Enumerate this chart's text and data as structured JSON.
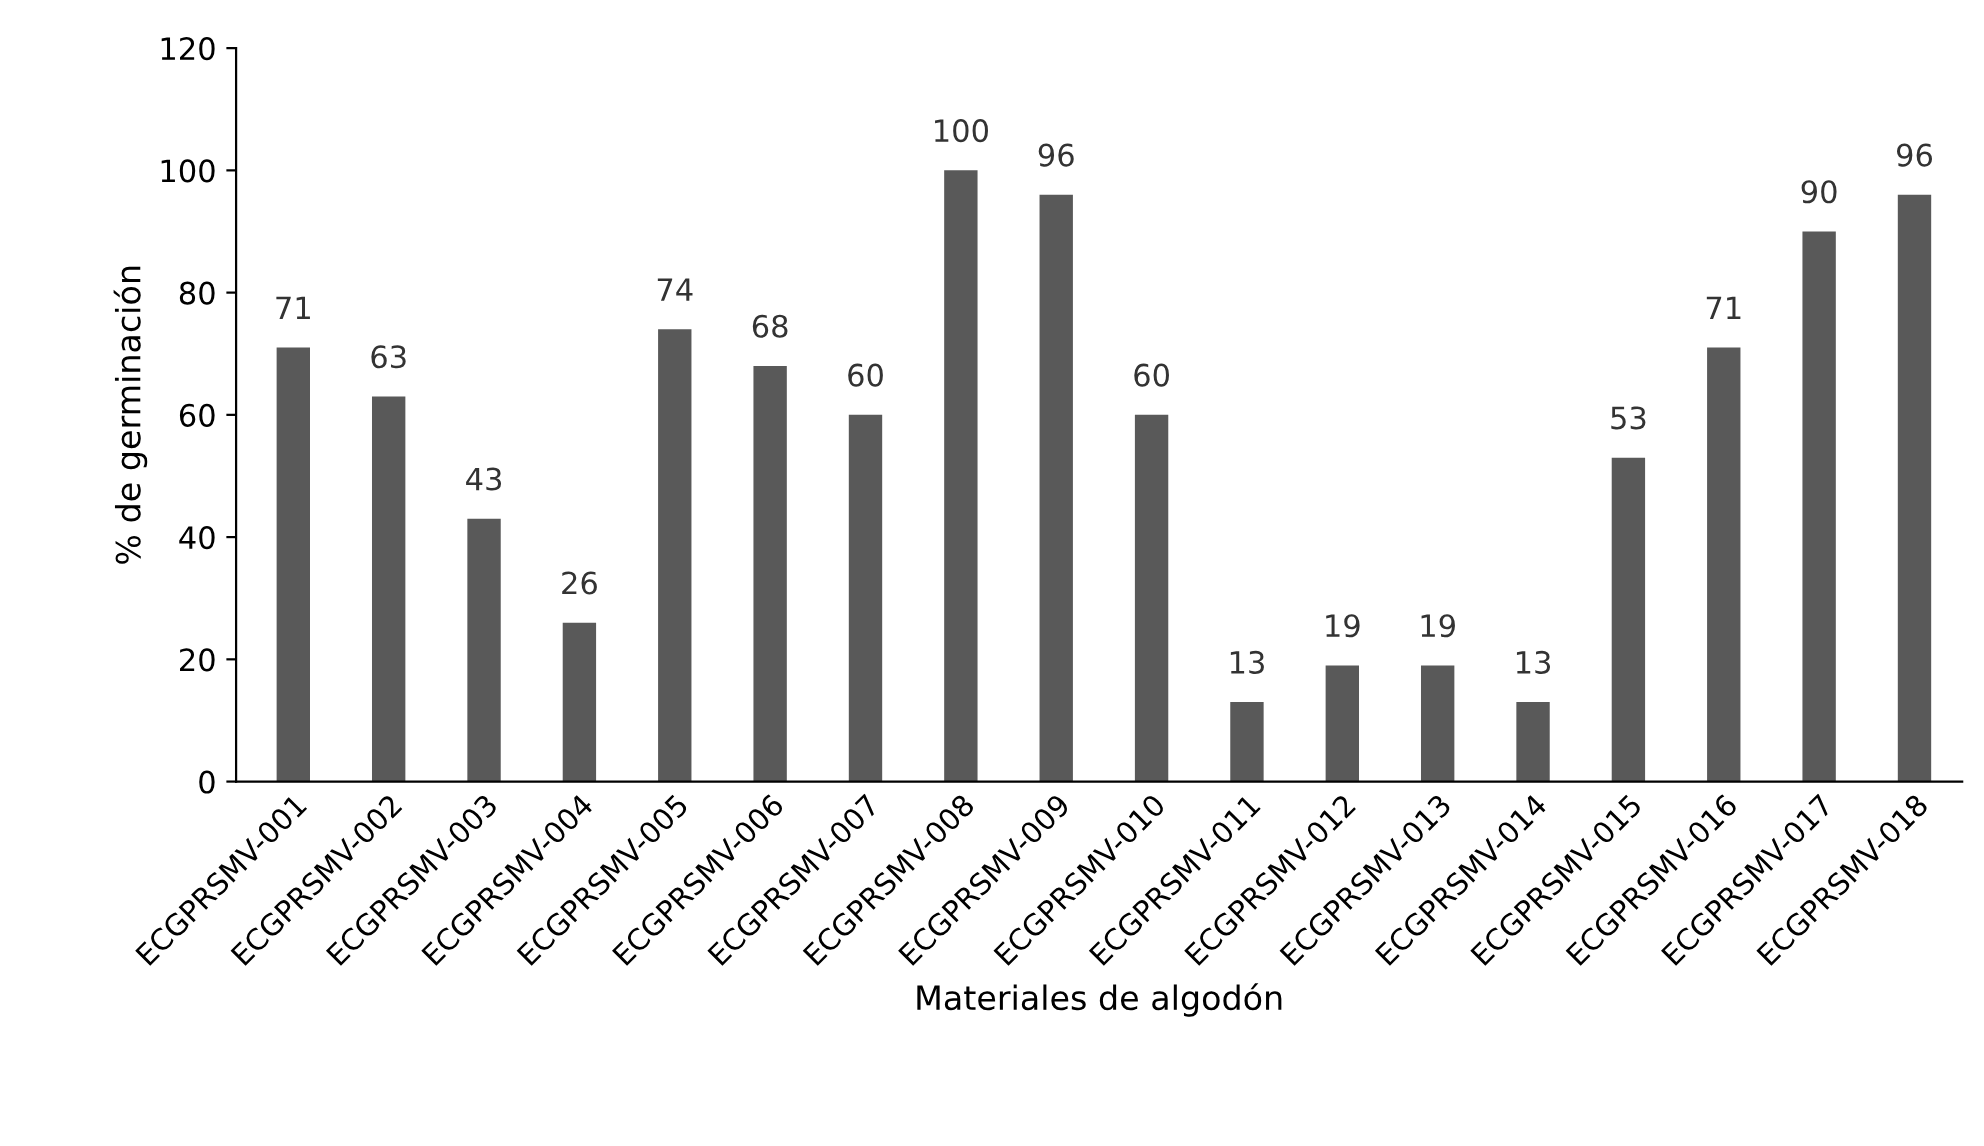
{
  "chart_data": {
    "type": "bar",
    "xlabel": "Materiales de algodón",
    "ylabel": "% de germinación",
    "categories": [
      "ECGPRSMV-001",
      "ECGPRSMV-002",
      "ECGPRSMV-003",
      "ECGPRSMV-004",
      "ECGPRSMV-005",
      "ECGPRSMV-006",
      "ECGPRSMV-007",
      "ECGPRSMV-008",
      "ECGPRSMV-009",
      "ECGPRSMV-010",
      "ECGPRSMV-011",
      "ECGPRSMV-012",
      "ECGPRSMV-013",
      "ECGPRSMV-014",
      "ECGPRSMV-015",
      "ECGPRSMV-016",
      "ECGPRSMV-017",
      "ECGPRSMV-018"
    ],
    "values": [
      71,
      63,
      43,
      26,
      74,
      68,
      60,
      100,
      96,
      60,
      13,
      19,
      19,
      13,
      53,
      71,
      90,
      96
    ],
    "color": "#595959",
    "ylim": [
      0,
      120
    ],
    "yticks": [
      0,
      20,
      40,
      60,
      80,
      100,
      120
    ],
    "grid": false,
    "data_labels": true
  }
}
